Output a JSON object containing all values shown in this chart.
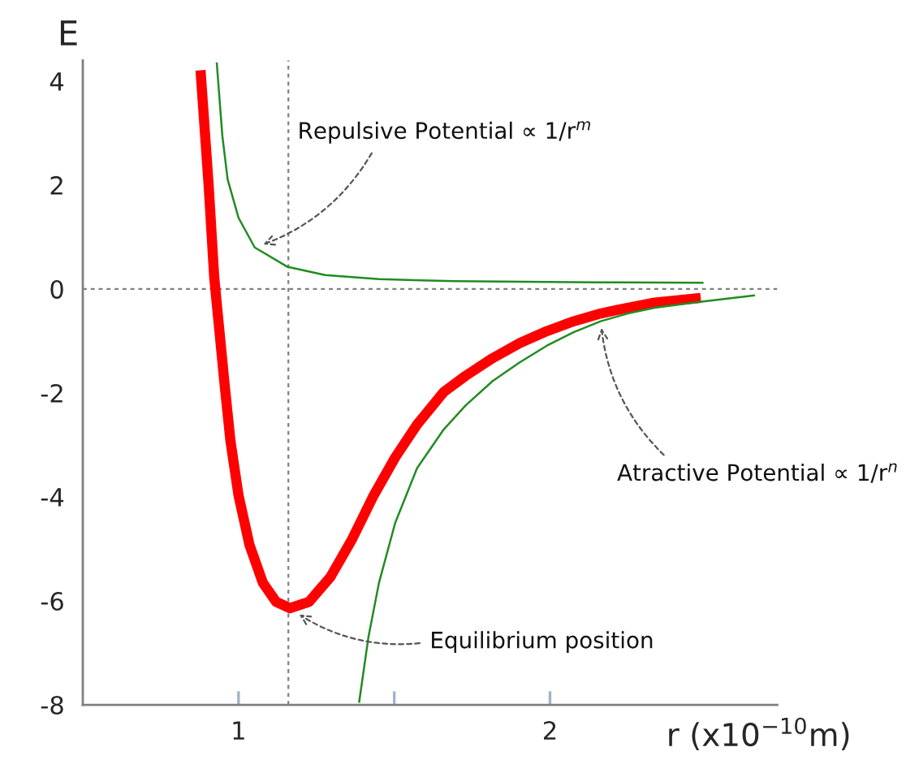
{
  "chart_data": {
    "type": "line",
    "xlabel": "r (x10$^{−10}$m)",
    "ylabel": "E",
    "series": [
      {
        "color": "#ff0000",
        "x": [
          0.878,
          0.904,
          0.922,
          0.939,
          0.956,
          0.974,
          1.0,
          1.035,
          1.078,
          1.121,
          1.165,
          1.226,
          1.295,
          1.365,
          1.434,
          1.503,
          1.573,
          1.659,
          1.729,
          1.816,
          1.903,
          1.99,
          2.076,
          2.163,
          2.25,
          2.336,
          2.484
        ],
        "values": [
          4.21,
          2.0,
          0.22,
          -0.83,
          -1.88,
          -2.92,
          -3.97,
          -4.92,
          -5.65,
          -6.02,
          -6.14,
          -6.02,
          -5.54,
          -4.81,
          -3.97,
          -3.24,
          -2.61,
          -1.98,
          -1.67,
          -1.33,
          -1.04,
          -0.81,
          -0.62,
          -0.47,
          -0.36,
          -0.26,
          -0.17
        ]
      },
      {
        "color": "#228b22",
        "x": [
          0.93,
          0.948,
          0.965,
          1.0,
          1.052,
          1.156,
          1.278,
          1.451,
          1.694,
          2.146,
          2.493
        ],
        "values": [
          4.36,
          2.95,
          2.11,
          1.37,
          0.8,
          0.43,
          0.27,
          0.19,
          0.15,
          0.13,
          0.12
        ]
      },
      {
        "color": "#228b22",
        "x": [
          1.387,
          1.417,
          1.451,
          1.503,
          1.573,
          1.659,
          1.729,
          1.816,
          1.903,
          1.99,
          2.076,
          2.163,
          2.25,
          2.336,
          2.476,
          2.658
        ],
        "values": [
          -7.96,
          -6.7,
          -5.65,
          -4.5,
          -3.45,
          -2.7,
          -2.24,
          -1.77,
          -1.41,
          -1.09,
          -0.83,
          -0.62,
          -0.47,
          -0.36,
          -0.25,
          -0.12
        ]
      }
    ],
    "xlim": [
      0.5,
      2.73
    ],
    "ylim": [
      -8,
      4.4
    ],
    "xticks": [
      1,
      {
        "value": 1.5,
        "label": null
      },
      2
    ],
    "yticks": [
      -8,
      -6,
      -4,
      -2,
      0,
      2,
      4
    ],
    "ref_lines": [
      {
        "axis": "y",
        "value": 0,
        "color": "#808080",
        "line_style": "dashed"
      },
      {
        "axis": "x",
        "value": 1.16,
        "color": "#808080",
        "line_style": "dashed"
      }
    ],
    "annotations": [
      {
        "text": "Repulsive Potential ∝ 1/r$^{m}$",
        "x": 1.052,
        "y": 0.8
      },
      {
        "text": "Equilibrium position",
        "x": 1.165,
        "y": -6.14
      },
      {
        "text": "Atractive Potential ∝ 1/r$^{n}$",
        "x": 2.163,
        "y": -0.62
      }
    ],
    "grid": false,
    "line_style": "solid"
  }
}
